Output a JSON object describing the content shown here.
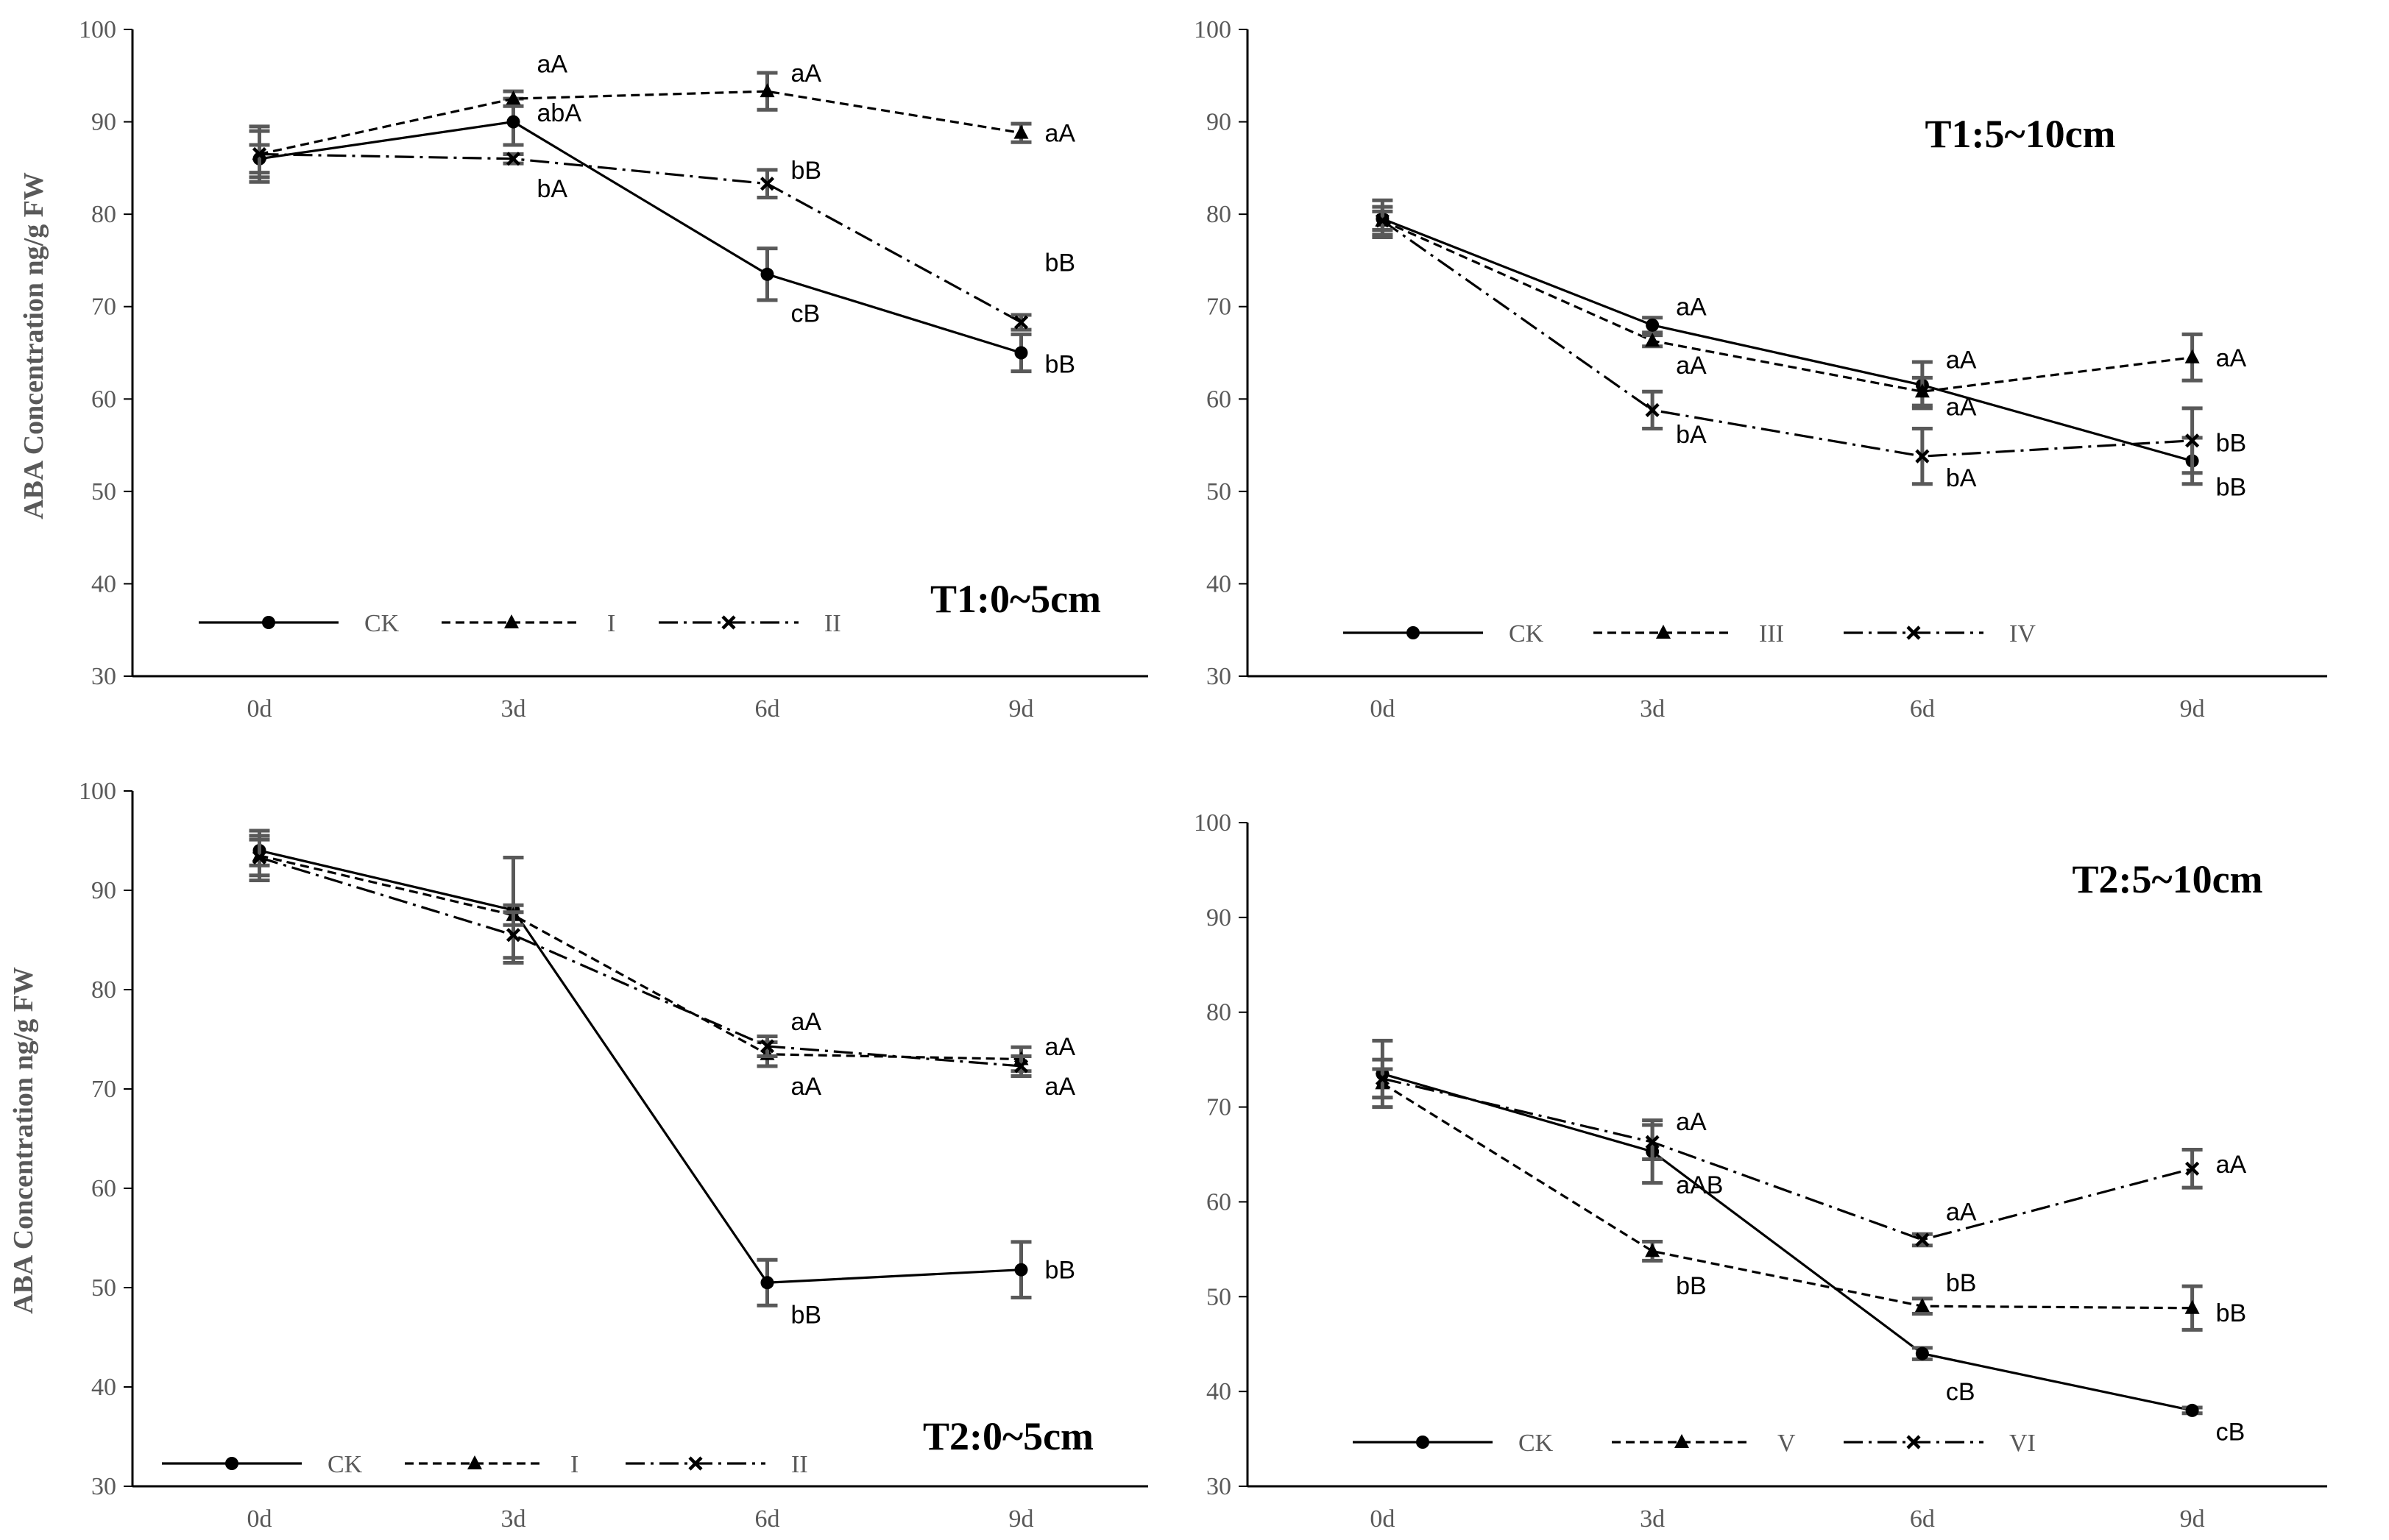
{
  "chart_data": [
    {
      "type": "line",
      "title": "T1:0~5cm",
      "ylabel": "ABA Concentration ng/g FW",
      "xlabel": "",
      "categories": [
        "0d",
        "3d",
        "6d",
        "9d"
      ],
      "ylim": [
        30,
        100
      ],
      "yticks": [
        30,
        40,
        50,
        60,
        70,
        80,
        90,
        100
      ],
      "series": [
        {
          "name": "CK",
          "values": [
            86.0,
            90.0,
            73.5,
            65.0
          ],
          "errors": [
            1.5,
            2.5,
            2.8,
            2.0
          ],
          "marker": "circle",
          "dash": "solid"
        },
        {
          "name": "I",
          "values": [
            86.5,
            92.5,
            93.3,
            88.8
          ],
          "errors": [
            2.5,
            0.8,
            2.0,
            1.0
          ],
          "marker": "triangle",
          "dash": "dashed"
        },
        {
          "name": "II",
          "values": [
            86.5,
            86.0,
            83.3,
            68.3
          ],
          "errors": [
            3.0,
            0.5,
            1.5,
            0.8
          ],
          "marker": "cross",
          "dash": "dashdot"
        }
      ],
      "annotations": [
        {
          "text": "aA",
          "x": "3d",
          "y": 96.3
        },
        {
          "text": "abA",
          "x": "3d",
          "y": 91.0
        },
        {
          "text": "bA",
          "x": "3d",
          "y": 82.8
        },
        {
          "text": "aA",
          "x": "6d",
          "y": 95.3
        },
        {
          "text": "bB",
          "x": "6d",
          "y": 84.8
        },
        {
          "text": "cB",
          "x": "6d",
          "y": 69.3
        },
        {
          "text": "aA",
          "x": "9d",
          "y": 88.8
        },
        {
          "text": "bB",
          "x": "9d",
          "y": 74.8
        },
        {
          "text": "bB",
          "x": "9d",
          "y": 63.8
        }
      ],
      "legend_position": "bottom"
    },
    {
      "type": "line",
      "title": "T1:5~10cm",
      "ylabel": "",
      "xlabel": "",
      "categories": [
        "0d",
        "3d",
        "6d",
        "9d"
      ],
      "ylim": [
        30,
        100
      ],
      "yticks": [
        30,
        40,
        50,
        60,
        70,
        80,
        90,
        100
      ],
      "series": [
        {
          "name": "CK",
          "values": [
            79.5,
            68.0,
            61.5,
            53.3
          ],
          "errors": [
            2.0,
            0.8,
            2.5,
            2.5
          ],
          "marker": "circle",
          "dash": "solid"
        },
        {
          "name": "III",
          "values": [
            79.3,
            66.3,
            60.8,
            64.5
          ],
          "errors": [
            1.5,
            0.6,
            1.5,
            2.5
          ],
          "marker": "triangle",
          "dash": "dashed"
        },
        {
          "name": "IV",
          "values": [
            79.3,
            58.8,
            53.8,
            55.5
          ],
          "errors": [
            1.0,
            2.0,
            3.0,
            3.5
          ],
          "marker": "cross",
          "dash": "dashdot"
        }
      ],
      "annotations": [
        {
          "text": "aA",
          "x": "3d",
          "y": 70.0
        },
        {
          "text": "aA",
          "x": "3d",
          "y": 63.7
        },
        {
          "text": "bA",
          "x": "3d",
          "y": 56.2
        },
        {
          "text": "aA",
          "x": "6d",
          "y": 64.3
        },
        {
          "text": "aA",
          "x": "6d",
          "y": 59.2
        },
        {
          "text": "bA",
          "x": "6d",
          "y": 51.5
        },
        {
          "text": "aA",
          "x": "9d",
          "y": 64.5
        },
        {
          "text": "bB",
          "x": "9d",
          "y": 55.3
        },
        {
          "text": "bB",
          "x": "9d",
          "y": 50.5
        }
      ],
      "legend_position": "bottom"
    },
    {
      "type": "line",
      "title": "T2:0~5cm",
      "ylabel": "ABA  Concentration ng/g FW",
      "xlabel": "",
      "categories": [
        "0d",
        "3d",
        "6d",
        "9d"
      ],
      "ylim": [
        30,
        100
      ],
      "yticks": [
        30,
        40,
        50,
        60,
        70,
        80,
        90,
        100
      ],
      "series": [
        {
          "name": "CK",
          "values": [
            94.0,
            88.0,
            50.5,
            51.8
          ],
          "errors": [
            1.5,
            5.3,
            2.3,
            2.8
          ],
          "marker": "circle",
          "dash": "solid"
        },
        {
          "name": "I",
          "values": [
            93.5,
            87.5,
            73.5,
            73.0
          ],
          "errors": [
            2.5,
            1.0,
            1.2,
            1.2
          ],
          "marker": "triangle",
          "dash": "dashed"
        },
        {
          "name": "II",
          "values": [
            93.3,
            85.5,
            74.3,
            72.3
          ],
          "errors": [
            1.8,
            2.3,
            1.0,
            1.0
          ],
          "marker": "cross",
          "dash": "dashdot"
        }
      ],
      "annotations": [
        {
          "text": "aA",
          "x": "6d",
          "y": 76.8
        },
        {
          "text": "aA",
          "x": "6d",
          "y": 70.3
        },
        {
          "text": "bB",
          "x": "6d",
          "y": 47.3
        },
        {
          "text": "aA",
          "x": "9d",
          "y": 74.3
        },
        {
          "text": "aA",
          "x": "9d",
          "y": 70.3
        },
        {
          "text": "bB",
          "x": "9d",
          "y": 51.8
        }
      ],
      "legend_position": "bottom"
    },
    {
      "type": "line",
      "title": "T2:5~10cm",
      "ylabel": "",
      "xlabel": "",
      "categories": [
        "0d",
        "3d",
        "6d",
        "9d"
      ],
      "ylim": [
        30,
        100
      ],
      "yticks": [
        30,
        40,
        50,
        60,
        70,
        80,
        90,
        100
      ],
      "series": [
        {
          "name": "CK",
          "values": [
            73.5,
            65.3,
            44.0,
            38.0
          ],
          "errors": [
            3.5,
            3.3,
            0.6,
            0.3
          ],
          "marker": "circle",
          "dash": "solid"
        },
        {
          "name": "V",
          "values": [
            72.5,
            54.8,
            49.0,
            48.8
          ],
          "errors": [
            1.5,
            1.0,
            0.8,
            2.3
          ],
          "marker": "triangle",
          "dash": "dashed"
        },
        {
          "name": "VI",
          "values": [
            73.0,
            66.3,
            56.0,
            63.5
          ],
          "errors": [
            2.0,
            1.8,
            0.6,
            2.0
          ],
          "marker": "cross",
          "dash": "dashdot"
        }
      ],
      "annotations": [
        {
          "text": "aA",
          "x": "3d",
          "y": 68.5
        },
        {
          "text": "aAB",
          "x": "3d",
          "y": 61.8
        },
        {
          "text": "bB",
          "x": "3d",
          "y": 51.2
        },
        {
          "text": "aA",
          "x": "6d",
          "y": 59.0
        },
        {
          "text": "bB",
          "x": "6d",
          "y": 51.5
        },
        {
          "text": "cB",
          "x": "6d",
          "y": 40.0
        },
        {
          "text": "aA",
          "x": "9d",
          "y": 64.0
        },
        {
          "text": "bB",
          "x": "9d",
          "y": 48.3
        },
        {
          "text": "cB",
          "x": "9d",
          "y": 35.8
        }
      ],
      "legend_position": "bottom"
    }
  ]
}
